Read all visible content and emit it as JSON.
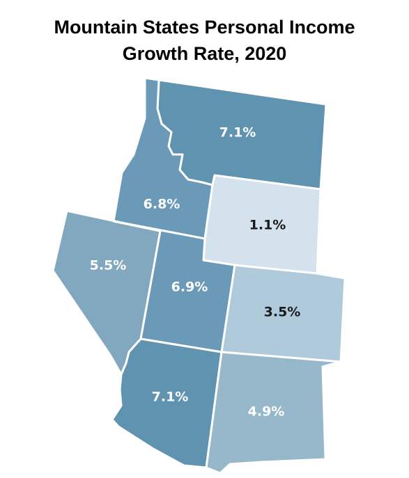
{
  "title": {
    "line1": "Mountain States Personal Income",
    "line2": "Growth Rate, 2020"
  },
  "colors": {
    "darkest": "#6093b0",
    "dark": "#6a9ab7",
    "medium_dark": "#82a8c0",
    "medium": "#97b7cb",
    "light": "#aecadb",
    "lightest": "#d3e2ec",
    "label_light": "#ffffff",
    "label_dark": "#1a1a1a"
  },
  "states": [
    {
      "id": "montana",
      "label": "7.1%",
      "value": 7.1,
      "fill": "#6093b0",
      "label_color": "#ffffff"
    },
    {
      "id": "idaho",
      "label": "6.8%",
      "value": 6.8,
      "fill": "#6a9ab7",
      "label_color": "#ffffff"
    },
    {
      "id": "wyoming",
      "label": "1.1%",
      "value": 1.1,
      "fill": "#d3e2ec",
      "label_color": "#1a1a1a"
    },
    {
      "id": "nevada",
      "label": "5.5%",
      "value": 5.5,
      "fill": "#82a8c0",
      "label_color": "#ffffff"
    },
    {
      "id": "utah",
      "label": "6.9%",
      "value": 6.9,
      "fill": "#6a9ab7",
      "label_color": "#ffffff"
    },
    {
      "id": "colorado",
      "label": "3.5%",
      "value": 3.5,
      "fill": "#aecadb",
      "label_color": "#1a1a1a"
    },
    {
      "id": "arizona",
      "label": "7.1%",
      "value": 7.1,
      "fill": "#6093b0",
      "label_color": "#ffffff"
    },
    {
      "id": "new-mexico",
      "label": "4.9%",
      "value": 4.9,
      "fill": "#97b7cb",
      "label_color": "#ffffff"
    }
  ]
}
